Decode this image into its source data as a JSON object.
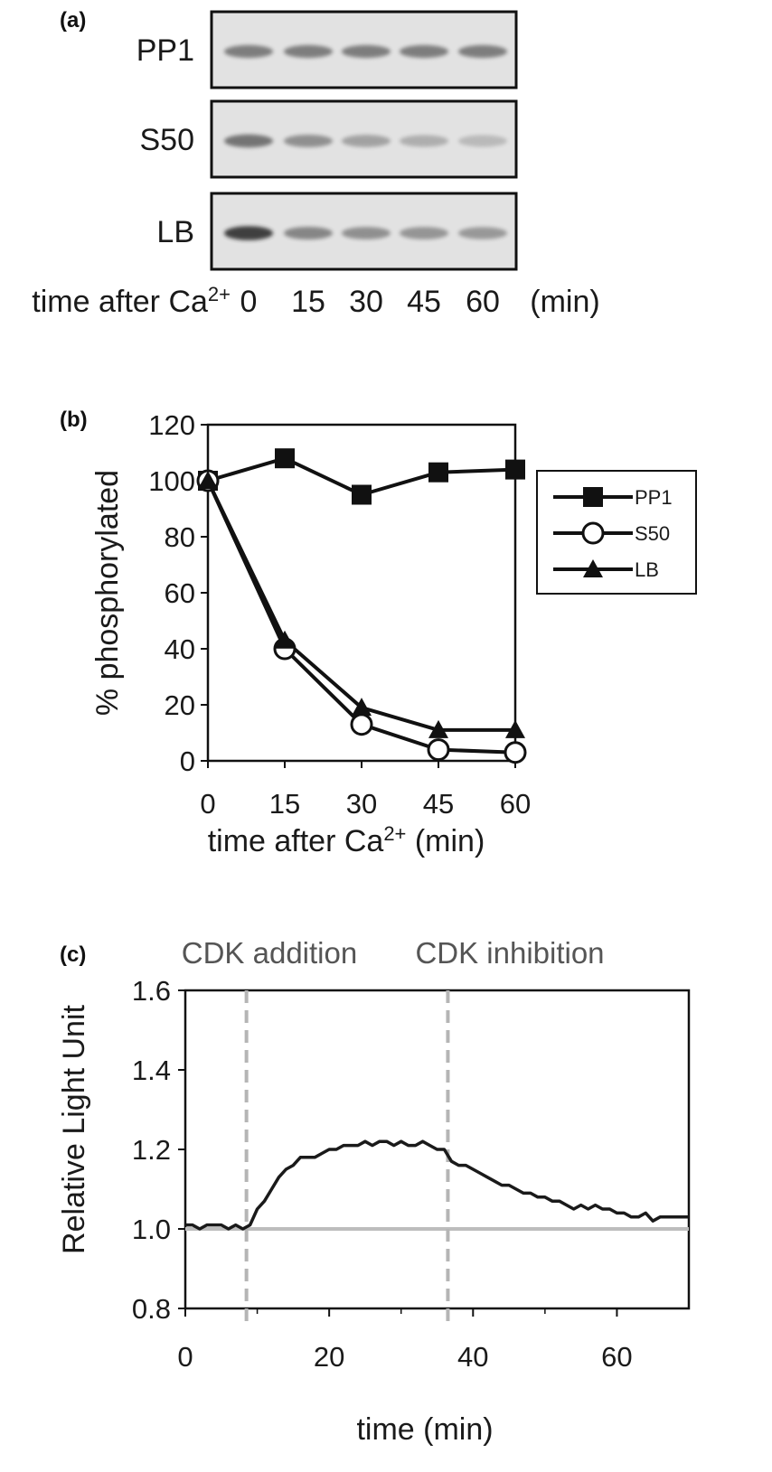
{
  "panel_a": {
    "letter": "(a)",
    "rows": [
      "PP1",
      "S50",
      "LB"
    ],
    "lanes_prefix": "time after Ca",
    "lanes_sup": "2+",
    "lanes": [
      "0",
      "15",
      "30",
      "45",
      "60"
    ],
    "lanes_unit": "(min)",
    "band_intensity": [
      [
        0.55,
        0.55,
        0.55,
        0.55,
        0.55
      ],
      [
        0.6,
        0.45,
        0.35,
        0.28,
        0.22
      ],
      [
        0.9,
        0.5,
        0.45,
        0.42,
        0.4
      ]
    ]
  },
  "panel_c": {
    "letter": "(c)",
    "annotations": [
      "CDK addition",
      "CDK inhibition"
    ]
  },
  "chart_data": [
    {
      "type": "line",
      "letter": "(b)",
      "x": [
        0,
        15,
        30,
        45,
        60
      ],
      "series": [
        {
          "name": "PP1",
          "marker": "square-filled",
          "values": [
            100,
            108,
            95,
            103,
            104
          ]
        },
        {
          "name": "S50",
          "marker": "circle-open",
          "values": [
            100,
            40,
            13,
            4,
            3
          ]
        },
        {
          "name": "LB",
          "marker": "triangle-filled",
          "values": [
            100,
            43,
            19,
            11,
            11
          ]
        }
      ],
      "xlabel_prefix": "time after Ca",
      "xlabel_sup": "2+",
      "xlabel_suffix": " (min)",
      "ylabel": "% phosphorylated",
      "xlim": [
        0,
        60
      ],
      "ylim": [
        0,
        120
      ],
      "xticks": [
        "0",
        "15",
        "30",
        "45",
        "60"
      ],
      "yticks": [
        "0",
        "20",
        "40",
        "60",
        "80",
        "100",
        "120"
      ],
      "legend": "right-outside",
      "grid": false
    },
    {
      "type": "line",
      "letter": "(c)",
      "x": [
        0,
        1,
        2,
        3,
        4,
        5,
        6,
        7,
        8,
        9,
        10,
        11,
        12,
        13,
        14,
        15,
        16,
        17,
        18,
        19,
        20,
        21,
        22,
        23,
        24,
        25,
        26,
        27,
        28,
        29,
        30,
        31,
        32,
        33,
        34,
        35,
        36,
        37,
        38,
        39,
        40,
        41,
        42,
        43,
        44,
        45,
        46,
        47,
        48,
        49,
        50,
        51,
        52,
        53,
        54,
        55,
        56,
        57,
        58,
        59,
        60,
        61,
        62,
        63,
        64,
        65,
        66,
        67,
        68,
        69,
        70
      ],
      "series": [
        {
          "name": "",
          "values": [
            1.01,
            1.01,
            1.0,
            1.01,
            1.01,
            1.01,
            1.0,
            1.01,
            1.0,
            1.01,
            1.05,
            1.07,
            1.1,
            1.13,
            1.15,
            1.16,
            1.18,
            1.18,
            1.18,
            1.19,
            1.2,
            1.2,
            1.21,
            1.21,
            1.21,
            1.22,
            1.21,
            1.22,
            1.22,
            1.21,
            1.22,
            1.21,
            1.21,
            1.22,
            1.21,
            1.2,
            1.2,
            1.17,
            1.16,
            1.16,
            1.15,
            1.14,
            1.13,
            1.12,
            1.11,
            1.11,
            1.1,
            1.09,
            1.09,
            1.08,
            1.08,
            1.07,
            1.07,
            1.06,
            1.05,
            1.06,
            1.05,
            1.06,
            1.05,
            1.05,
            1.04,
            1.04,
            1.03,
            1.03,
            1.04,
            1.02,
            1.03,
            1.03,
            1.03,
            1.03,
            1.03
          ]
        }
      ],
      "baseline": 1.0,
      "vlines": [
        8.5,
        36.5
      ],
      "xlabel": "time (min)",
      "ylabel": "Relative Light Unit",
      "xlim": [
        0,
        70
      ],
      "ylim": [
        0.8,
        1.6
      ],
      "xticks": [
        "0",
        "20",
        "40",
        "60"
      ],
      "yticks": [
        "0.8",
        "1.0",
        "1.2",
        "1.4",
        "1.6"
      ],
      "grid": false
    }
  ]
}
